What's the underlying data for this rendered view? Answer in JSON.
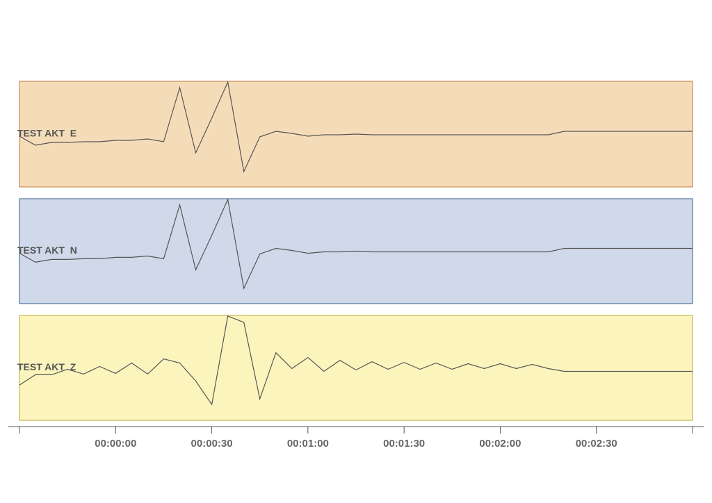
{
  "chart_data": {
    "type": "line",
    "x": [
      -30,
      -25,
      -20,
      -15,
      -10,
      -5,
      0,
      5,
      10,
      15,
      20,
      25,
      30,
      35,
      40,
      45,
      50,
      55,
      60,
      65,
      70,
      75,
      80,
      85,
      90,
      95,
      100,
      105,
      110,
      115,
      120,
      125,
      130,
      135,
      140,
      145,
      150,
      155,
      160,
      165,
      170,
      175,
      180
    ],
    "xlim": [
      -30,
      180
    ],
    "xticks": [
      {
        "value": 0,
        "label": "00:00:00"
      },
      {
        "value": 30,
        "label": "00:00:30"
      },
      {
        "value": 60,
        "label": "00:01:00"
      },
      {
        "value": 90,
        "label": "00:01:30"
      },
      {
        "value": 120,
        "label": "00:02:00"
      },
      {
        "value": 150,
        "label": "00:02:30"
      }
    ],
    "ylim": [
      -76,
      76
    ],
    "line_color": "#555555",
    "series": [
      {
        "name": "TEST AKT  E",
        "color": "#f5dcb8",
        "border": "#c07a3a",
        "values": [
          -3,
          -16,
          -12,
          -12,
          -11,
          -11,
          -9,
          -9,
          -7,
          -11,
          67,
          -27,
          23,
          75,
          -54,
          -4,
          4,
          1,
          -3,
          -1,
          -1,
          0,
          -1,
          -1,
          -1,
          -1,
          -1,
          -1,
          -1,
          -1,
          -1,
          -1,
          -1,
          -1,
          4,
          4,
          4,
          4,
          4,
          4,
          4,
          4,
          4
        ]
      },
      {
        "name": "TEST AKT  N",
        "color": "#cfd9ea",
        "border": "#3a5a8c",
        "values": [
          -3,
          -16,
          -12,
          -12,
          -11,
          -11,
          -9,
          -9,
          -7,
          -11,
          67,
          -27,
          23,
          75,
          -54,
          -4,
          4,
          1,
          -3,
          -1,
          -1,
          0,
          -1,
          -1,
          -1,
          -1,
          -1,
          -1,
          -1,
          -1,
          -1,
          -1,
          -1,
          -1,
          4,
          4,
          4,
          4,
          4,
          4,
          4,
          4,
          4
        ]
      },
      {
        "name": "TEST AKT  Z",
        "color": "#fbf5bd",
        "border": "#b9a63a",
        "values": [
          -25,
          -10,
          -10,
          -2,
          -9,
          2,
          -8,
          7,
          -9,
          13,
          7,
          -19,
          -53,
          75,
          66,
          -45,
          22,
          -1,
          15,
          -5,
          11,
          -3,
          9,
          -2,
          8,
          -2,
          7,
          -2,
          6,
          -1,
          6,
          -1,
          5,
          -1,
          -5,
          -5,
          -5,
          -5,
          -5,
          -5,
          -5,
          -5,
          -5
        ]
      }
    ]
  }
}
